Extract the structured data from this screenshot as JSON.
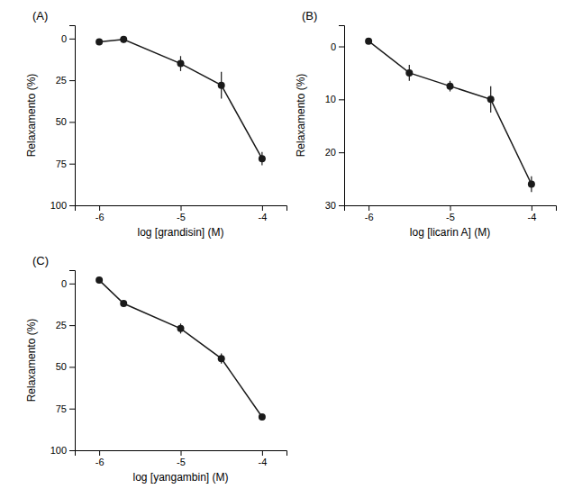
{
  "chart_data": [
    {
      "type": "line",
      "title": "(A)",
      "xlabel": "log [grandisin] (M)",
      "ylabel": "Relaxamento (%)",
      "x": [
        -6,
        -5.7,
        -5,
        -4.5,
        -4
      ],
      "values": [
        2.0,
        0.5,
        15.0,
        28.0,
        72.0
      ],
      "errors": [
        1.5,
        2.0,
        4.5,
        8.0,
        4.0
      ],
      "xlim": [
        -6.3,
        -3.7
      ],
      "ylim": [
        100,
        -8
      ],
      "xticks": [
        -6,
        -5,
        -4
      ],
      "yticks": [
        0,
        25,
        50,
        75,
        100
      ],
      "color": "#1a1a1a",
      "marker": "circle",
      "line_style": "solid"
    },
    {
      "type": "line",
      "title": "(B)",
      "xlabel": "log [licarin A] (M)",
      "ylabel": "Relaxamento (%)",
      "x": [
        -6,
        -5.5,
        -5,
        -4.5,
        -4
      ],
      "values": [
        -1.0,
        5.0,
        7.5,
        10.0,
        26.0
      ],
      "errors": [
        0.5,
        1.5,
        1.0,
        2.5,
        1.5
      ],
      "xlim": [
        -6.3,
        -3.7
      ],
      "ylim": [
        30,
        -4
      ],
      "xticks": [
        -6,
        -5,
        -4
      ],
      "yticks": [
        0,
        10,
        20,
        30
      ],
      "color": "#1a1a1a",
      "marker": "circle",
      "line_style": "solid"
    },
    {
      "type": "line",
      "title": "(C)",
      "xlabel": "log [yangambin] (M)",
      "ylabel": "Relaxamento (%)",
      "x": [
        -6,
        -5.7,
        -5,
        -4.5,
        -4
      ],
      "values": [
        -2.0,
        12.0,
        27.0,
        45.0,
        80.0
      ],
      "errors": [
        1.5,
        1.5,
        3.0,
        3.0,
        1.0
      ],
      "xlim": [
        -6.3,
        -3.7
      ],
      "ylim": [
        100,
        -8
      ],
      "xticks": [
        -6,
        -5,
        -4
      ],
      "yticks": [
        0,
        25,
        50,
        75,
        100
      ],
      "color": "#1a1a1a",
      "marker": "circle",
      "line_style": "solid"
    }
  ]
}
